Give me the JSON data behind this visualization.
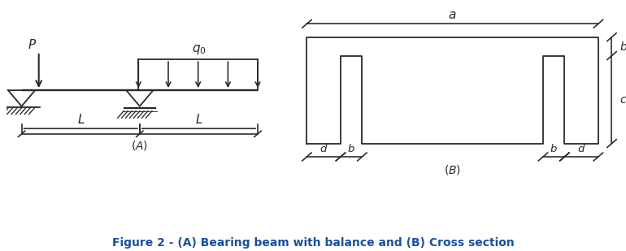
{
  "fig_width": 7.7,
  "fig_height": 3.09,
  "dpi": 100,
  "bg_color": "#ffffff",
  "line_color": "#2a2a2a",
  "caption": "Figure 2 - (A) Bearing beam with balance and (B) Cross section",
  "caption_color": "#1a4fa0",
  "caption_fontsize": 10.0
}
